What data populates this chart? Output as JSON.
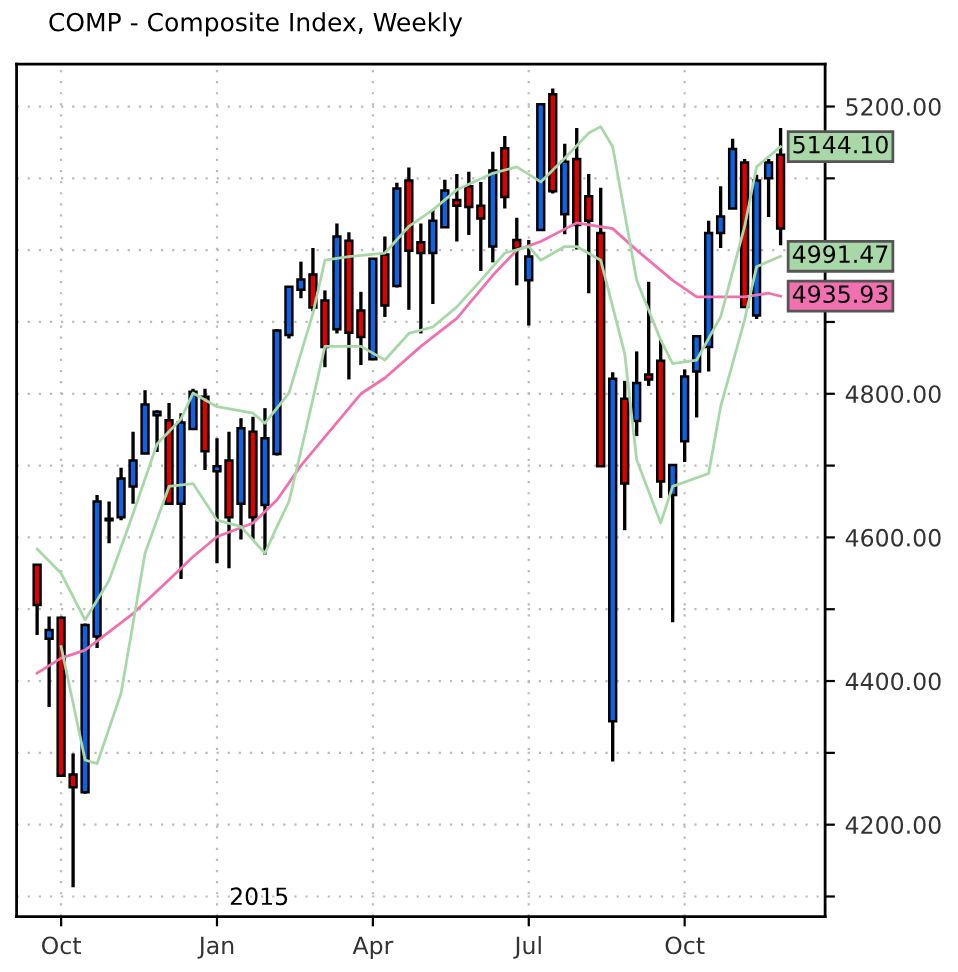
{
  "chart_data": {
    "type": "candlestick",
    "title": "COMP - Composite Index, Weekly",
    "x": [
      "2014-09-22",
      "2014-09-29",
      "2014-10-06",
      "2014-10-13",
      "2014-10-20",
      "2014-10-27",
      "2014-11-03",
      "2014-11-10",
      "2014-11-17",
      "2014-11-24",
      "2014-12-01",
      "2014-12-08",
      "2014-12-15",
      "2014-12-22",
      "2014-12-29",
      "2015-01-05",
      "2015-01-12",
      "2015-01-19",
      "2015-01-26",
      "2015-02-02",
      "2015-02-09",
      "2015-02-16",
      "2015-02-23",
      "2015-03-02",
      "2015-03-09",
      "2015-03-16",
      "2015-03-23",
      "2015-03-30",
      "2015-04-06",
      "2015-04-13",
      "2015-04-20",
      "2015-04-27",
      "2015-05-04",
      "2015-05-11",
      "2015-05-18",
      "2015-05-25",
      "2015-06-01",
      "2015-06-08",
      "2015-06-15",
      "2015-06-22",
      "2015-06-29",
      "2015-07-06",
      "2015-07-13",
      "2015-07-20",
      "2015-07-27",
      "2015-08-03",
      "2015-08-10",
      "2015-08-17",
      "2015-08-24",
      "2015-08-31",
      "2015-09-07",
      "2015-09-14",
      "2015-09-21",
      "2015-09-28",
      "2015-10-05",
      "2015-10-12",
      "2015-10-19",
      "2015-10-26",
      "2015-11-02",
      "2015-11-09",
      "2015-11-16",
      "2015-11-23",
      "2015-11-30"
    ],
    "ohlc": [
      [
        4562,
        4562,
        4464,
        4506
      ],
      [
        4459,
        4490,
        4364,
        4471
      ],
      [
        4488,
        4490,
        4268,
        4268
      ],
      [
        4270,
        4299,
        4113,
        4252
      ],
      [
        4245,
        4480,
        4243,
        4478
      ],
      [
        4462,
        4659,
        4446,
        4650
      ],
      [
        4626,
        4650,
        4592,
        4624
      ],
      [
        4628,
        4697,
        4624,
        4682
      ],
      [
        4671,
        4747,
        4647,
        4707
      ],
      [
        4717,
        4805,
        4717,
        4785
      ],
      [
        4770,
        4777,
        4719,
        4775
      ],
      [
        4763,
        4787,
        4647,
        4647
      ],
      [
        4647,
        4773,
        4542,
        4760
      ],
      [
        4751,
        4807,
        4751,
        4803
      ],
      [
        4796,
        4807,
        4694,
        4720
      ],
      [
        4692,
        4738,
        4564,
        4699
      ],
      [
        4707,
        4747,
        4557,
        4628
      ],
      [
        4647,
        4766,
        4597,
        4752
      ],
      [
        4747,
        4768,
        4597,
        4628
      ],
      [
        4645,
        4780,
        4576,
        4738
      ],
      [
        4716,
        4890,
        4714,
        4888
      ],
      [
        4882,
        4949,
        4877,
        4949
      ],
      [
        4945,
        4984,
        4933,
        4959
      ],
      [
        4966,
        5003,
        4915,
        4920
      ],
      [
        4930,
        4944,
        4837,
        4865
      ],
      [
        4890,
        5037,
        4884,
        5019
      ],
      [
        5013,
        5025,
        4820,
        4885
      ],
      [
        4916,
        4942,
        4840,
        4879
      ],
      [
        4848,
        4988,
        4848,
        4988
      ],
      [
        4994,
        5019,
        4907,
        4923
      ],
      [
        4950,
        5094,
        4948,
        5086
      ],
      [
        5097,
        5115,
        4917,
        4999
      ],
      [
        5011,
        5037,
        4884,
        4996
      ],
      [
        4996,
        5056,
        4925,
        5041
      ],
      [
        5032,
        5098,
        5032,
        5083
      ],
      [
        5070,
        5106,
        5012,
        5062
      ],
      [
        5089,
        5109,
        5021,
        5060
      ],
      [
        5062,
        5095,
        4971,
        5044
      ],
      [
        5005,
        5137,
        4983,
        5111
      ],
      [
        5142,
        5159,
        5058,
        5074
      ],
      [
        5014,
        5045,
        4951,
        5002
      ],
      [
        4958,
        5014,
        4895,
        4991
      ],
      [
        5028,
        5203,
        5028,
        5203
      ],
      [
        5217,
        5225,
        5079,
        5082
      ],
      [
        5050,
        5148,
        5022,
        5123
      ],
      [
        5127,
        5170,
        5001,
        5035
      ],
      [
        5075,
        5106,
        4940,
        5041
      ],
      [
        5024,
        5087,
        4699,
        4699
      ],
      [
        4344,
        4830,
        4288,
        4821
      ],
      [
        4793,
        4818,
        4610,
        4675
      ],
      [
        4762,
        4859,
        4741,
        4815
      ],
      [
        4827,
        4956,
        4811,
        4820
      ],
      [
        4846,
        4875,
        4655,
        4678
      ],
      [
        4659,
        4701,
        4482,
        4701
      ],
      [
        4734,
        4834,
        4705,
        4824
      ],
      [
        4831,
        4880,
        4767,
        4880
      ],
      [
        4865,
        5041,
        4831,
        5024
      ],
      [
        5024,
        5089,
        5003,
        5047
      ],
      [
        5058,
        5155,
        5058,
        5141
      ],
      [
        5122,
        5127,
        4921,
        4921
      ],
      [
        4909,
        5105,
        4904,
        5097
      ],
      [
        5100,
        5127,
        5046,
        5122
      ],
      [
        5133,
        5170,
        5007,
        5030
      ]
    ],
    "colors": [
      "#e00000",
      "#0a64e6",
      "#e00000",
      "#e00000",
      "#0a64e6",
      "#0a64e6",
      "#e00000",
      "#0a64e6",
      "#0a64e6",
      "#0a64e6",
      "#0a64e6",
      "#e00000",
      "#0a64e6",
      "#0a64e6",
      "#e00000",
      "#0a64e6",
      "#e00000",
      "#0a64e6",
      "#e00000",
      "#0a64e6",
      "#0a64e6",
      "#0a64e6",
      "#0a64e6",
      "#e00000",
      "#e00000",
      "#0a64e6",
      "#e00000",
      "#e00000",
      "#0a64e6",
      "#e00000",
      "#0a64e6",
      "#e00000",
      "#e00000",
      "#0a64e6",
      "#0a64e6",
      "#e00000",
      "#e00000",
      "#e00000",
      "#0a64e6",
      "#e00000",
      "#e00000",
      "#0a64e6",
      "#0a64e6",
      "#e00000",
      "#0a64e6",
      "#e00000",
      "#e00000",
      "#e00000",
      "#0a64e6",
      "#e00000",
      "#0a64e6",
      "#e00000",
      "#e00000",
      "#0a64e6",
      "#0a64e6",
      "#0a64e6",
      "#0a64e6",
      "#0a64e6",
      "#0a64e6",
      "#e00000",
      "#0a64e6",
      "#0a64e6",
      "#e00000"
    ],
    "series": [
      {
        "type": "line",
        "color": "#f070b0",
        "x": [
          "2014-09-22",
          "2014-10-06",
          "2014-10-20",
          "2014-11-17",
          "2014-12-08",
          "2014-12-22",
          "2015-01-05",
          "2015-01-26",
          "2015-02-09",
          "2015-02-23",
          "2015-03-09",
          "2015-03-30",
          "2015-04-13",
          "2015-05-04",
          "2015-05-25",
          "2015-06-15",
          "2015-06-29",
          "2015-07-13",
          "2015-08-03",
          "2015-08-24",
          "2015-09-07",
          "2015-09-28",
          "2015-10-12",
          "2015-11-09",
          "2015-11-23",
          "2015-11-30"
        ],
        "values": [
          4411,
          4432,
          4443,
          4494,
          4541,
          4573,
          4601,
          4620,
          4652,
          4700,
          4740,
          4800,
          4822,
          4866,
          4905,
          4965,
          5000,
          5012,
          5038,
          5030,
          5000,
          4958,
          4935,
          4935,
          4940,
          4935.93
        ],
        "value_labels": [
          null,
          null,
          null,
          null,
          null,
          null,
          null,
          null,
          null,
          null,
          null,
          null,
          null,
          null,
          null,
          null,
          null,
          null,
          null,
          null,
          null,
          null,
          null,
          null,
          null,
          "4935.93"
        ]
      },
      {
        "type": "line",
        "color": "#a8d8a8",
        "x": [
          "2014-09-22",
          "2014-10-06",
          "2014-10-20",
          "2014-11-03",
          "2014-11-17",
          "2014-12-01",
          "2014-12-15",
          "2014-12-22",
          "2015-01-05",
          "2015-01-26",
          "2015-02-02",
          "2015-02-16",
          "2015-03-02",
          "2015-03-09",
          "2015-03-23",
          "2015-04-13",
          "2015-04-27",
          "2015-05-11",
          "2015-05-25",
          "2015-06-15",
          "2015-06-29",
          "2015-07-13",
          "2015-07-27",
          "2015-08-10",
          "2015-08-17",
          "2015-08-24",
          "2015-09-07",
          "2015-09-21",
          "2015-09-28",
          "2015-10-12",
          "2015-10-26",
          "2015-11-09",
          "2015-11-16",
          "2015-11-30"
        ],
        "values": [
          4584,
          4550,
          4485,
          4540,
          4633,
          4730,
          4765,
          4801,
          4782,
          4773,
          4759,
          4801,
          4912,
          4986,
          4991,
          4996,
          5033,
          5056,
          5084,
          5107,
          5116,
          5095,
          5128,
          5163,
          5172,
          5144,
          4958,
          4875,
          4842,
          4847,
          4907,
          5033,
          5116,
          5144.1
        ],
        "value_labels": [
          null,
          null,
          null,
          null,
          null,
          null,
          null,
          null,
          null,
          null,
          null,
          null,
          null,
          null,
          null,
          null,
          null,
          null,
          null,
          null,
          null,
          null,
          null,
          null,
          null,
          null,
          null,
          null,
          null,
          null,
          null,
          null,
          null,
          "5144.10"
        ]
      },
      {
        "type": "line",
        "color": "#a8d8a8",
        "x": [
          "2014-10-06",
          "2014-10-20",
          "2014-10-27",
          "2014-11-10",
          "2014-11-24",
          "2014-12-08",
          "2014-12-22",
          "2015-01-05",
          "2015-01-19",
          "2015-02-02",
          "2015-02-09",
          "2015-02-16",
          "2015-02-23",
          "2015-03-09",
          "2015-03-30",
          "2015-04-13",
          "2015-04-27",
          "2015-05-11",
          "2015-05-25",
          "2015-06-08",
          "2015-06-22",
          "2015-07-06",
          "2015-07-13",
          "2015-07-27",
          "2015-08-03",
          "2015-08-17",
          "2015-08-31",
          "2015-09-07",
          "2015-09-21",
          "2015-09-28",
          "2015-10-19",
          "2015-10-26",
          "2015-11-09",
          "2015-11-16",
          "2015-11-30"
        ],
        "values": [
          4448,
          4290,
          4285,
          4383,
          4578,
          4671,
          4675,
          4624,
          4615,
          4578,
          4615,
          4650,
          4720,
          4866,
          4866,
          4847,
          4884,
          4893,
          4921,
          4958,
          4996,
          5005,
          4986,
          5005,
          5005,
          4986,
          4856,
          4708,
          4620,
          4671,
          4689,
          4782,
          4903,
          4977,
          4991.47
        ],
        "value_labels": [
          null,
          null,
          null,
          null,
          null,
          null,
          null,
          null,
          null,
          null,
          null,
          null,
          null,
          null,
          null,
          null,
          null,
          null,
          null,
          null,
          null,
          null,
          null,
          null,
          null,
          null,
          null,
          null,
          null,
          null,
          null,
          null,
          null,
          null,
          "4991.47"
        ]
      }
    ],
    "xlim": [
      "2014-09-10",
      "2015-12-26"
    ],
    "xticks": [
      {
        "value": "2014-10-06",
        "label": "Oct"
      },
      {
        "value": "2015-01-05",
        "label": "Jan"
      },
      {
        "value": "2015-04-06",
        "label": "Apr"
      },
      {
        "value": "2015-07-06",
        "label": "Jul"
      },
      {
        "value": "2015-10-05",
        "label": "Oct"
      }
    ],
    "ylim": [
      4072,
      5259
    ],
    "yticks": [
      {
        "value": 4100,
        "label": null
      },
      {
        "value": 4200,
        "label": "4200.00"
      },
      {
        "value": 4300,
        "label": null
      },
      {
        "value": 4400,
        "label": "4400.00"
      },
      {
        "value": 4500,
        "label": null
      },
      {
        "value": 4600,
        "label": "4600.00"
      },
      {
        "value": 4700,
        "label": null
      },
      {
        "value": 4800,
        "label": "4800.00"
      },
      {
        "value": 4900,
        "label": null
      },
      {
        "value": 5000,
        "label": null
      },
      {
        "value": 5100,
        "label": null
      },
      {
        "value": 5200,
        "label": "5200.00"
      }
    ],
    "grid": true,
    "annotations": [
      "2015"
    ]
  }
}
